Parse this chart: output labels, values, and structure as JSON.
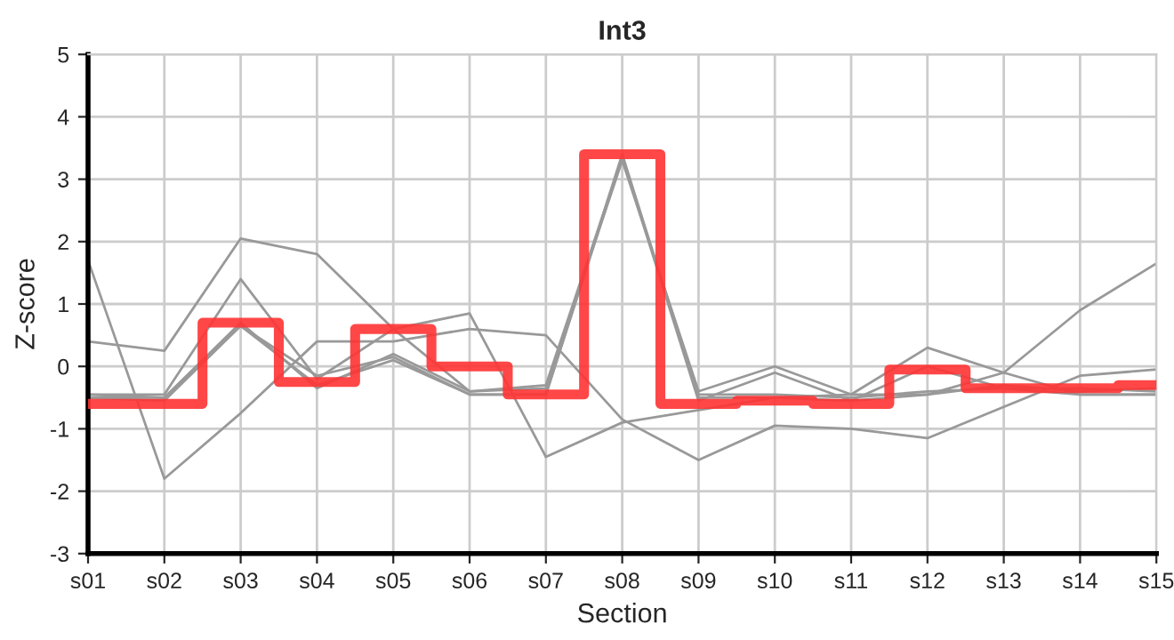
{
  "chart_data": {
    "type": "line",
    "title": "Int3",
    "xlabel": "Section",
    "ylabel": "Z-score",
    "categories": [
      "s01",
      "s02",
      "s03",
      "s04",
      "s05",
      "s06",
      "s07",
      "s08",
      "s09",
      "s10",
      "s11",
      "s12",
      "s13",
      "s14",
      "s15"
    ],
    "series": [
      {
        "color": "#999999",
        "values": [
          0.4,
          0.25,
          2.05,
          1.8,
          0.6,
          -0.4,
          -0.35,
          3.3,
          -0.4,
          0.0,
          -0.45,
          0.3,
          -0.1,
          -0.45,
          -0.45
        ]
      },
      {
        "color": "#999999",
        "values": [
          1.7,
          -1.8,
          -0.75,
          0.4,
          0.4,
          0.6,
          0.5,
          -0.85,
          -1.5,
          -0.95,
          -1.0,
          -1.15,
          -0.65,
          -0.15,
          -0.05
        ]
      },
      {
        "color": "#999999",
        "values": [
          -0.45,
          -0.45,
          1.4,
          -0.2,
          0.6,
          0.85,
          -1.45,
          -0.9,
          -0.7,
          -0.5,
          -0.55,
          -0.45,
          -0.1,
          0.9,
          1.65
        ]
      },
      {
        "color": "#999999",
        "values": [
          -0.5,
          -0.5,
          0.7,
          -0.35,
          0.2,
          -0.4,
          -0.3,
          3.35,
          -0.55,
          -0.1,
          -0.55,
          0.0,
          -0.35,
          -0.45,
          -0.45
        ]
      },
      {
        "color": "#999999",
        "values": [
          -0.5,
          -0.55,
          0.65,
          -0.3,
          0.1,
          -0.45,
          -0.45,
          3.35,
          -0.45,
          -0.45,
          -0.5,
          -0.4,
          -0.35,
          -0.35,
          -0.4
        ]
      },
      {
        "color": "#999999",
        "values": [
          -0.45,
          -0.5,
          0.65,
          -0.15,
          0.15,
          -0.45,
          -0.45,
          3.4,
          -0.5,
          -0.5,
          -0.45,
          -0.45,
          -0.3,
          -0.4,
          -0.35
        ]
      },
      {
        "type": "step",
        "color": "#ff3333",
        "values": [
          -0.6,
          -0.6,
          0.7,
          -0.25,
          0.6,
          0.0,
          -0.45,
          3.4,
          -0.6,
          -0.55,
          -0.6,
          -0.05,
          -0.35,
          -0.35,
          -0.3
        ]
      }
    ],
    "ylim": [
      -3,
      5
    ],
    "yticks": [
      -3,
      -2,
      -1,
      0,
      1,
      2,
      3,
      4,
      5
    ],
    "grid": true
  }
}
